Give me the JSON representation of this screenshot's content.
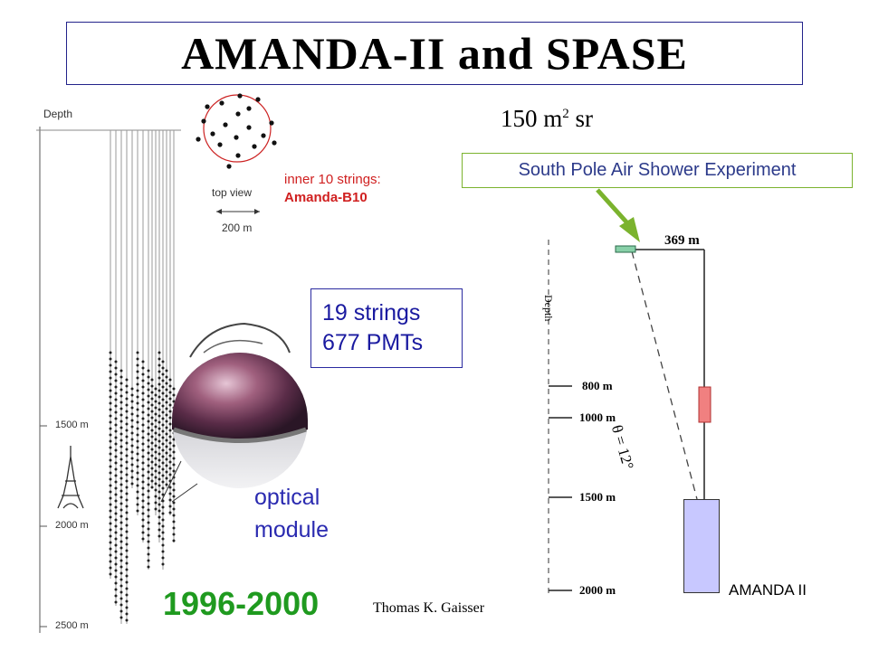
{
  "title": "AMANDA-II  and SPASE",
  "area": "150 m",
  "area_sup": "2",
  "area_unit": " sr",
  "left_figure": {
    "depth_label": "Depth",
    "ticks": [
      "1500 m",
      "2000 m",
      "2500 m"
    ],
    "top_view_label": "top view",
    "scale_label": "200 m"
  },
  "inner_strings": {
    "line1": "inner 10 strings:",
    "line2": "Amanda-B10"
  },
  "spase_label": "South Pole Air Shower Experiment",
  "strings_info": {
    "line1": "19 strings",
    "line2": "677 PMTs"
  },
  "optical_module": {
    "line1": "optical",
    "line2": "module"
  },
  "years": "1996-2000",
  "author": "Thomas K. Gaisser",
  "right_figure": {
    "depth_label": "Depth",
    "top_distance": "369 m",
    "angle_label": "θ = 12°",
    "ticks": [
      "800 m",
      "1000 m",
      "1500 m",
      "2000 m"
    ]
  },
  "amanda_label": "AMANDA II",
  "colors": {
    "title_border": "#23238a",
    "spase_border": "#7bb32e",
    "arrow": "#7bb32e",
    "inner_text": "#d02020",
    "optical_text": "#2a2ab0",
    "years_text": "#1f9a1f",
    "amanda_box": "#c8c8ff"
  }
}
